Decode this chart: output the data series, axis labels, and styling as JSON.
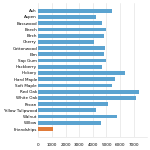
{
  "categories": [
    "Friendships",
    "Willow",
    "Walnut",
    "Yellow Tulipwood",
    "Pecan",
    "White Oak",
    "Red Oak",
    "Soft Maple",
    "Hard Maple",
    "Hickory",
    "Hackberry",
    "Sap Gum",
    "Elm",
    "Cottonwood",
    "Cherry",
    "Birch",
    "Beech",
    "Basswood",
    "Aspen",
    "Ash"
  ],
  "values": [
    1050,
    4600,
    5800,
    4200,
    5100,
    7200,
    7400,
    5400,
    5600,
    6400,
    4700,
    5000,
    4800,
    4900,
    4100,
    4800,
    5000,
    4700,
    4200,
    5400
  ],
  "bar_colors": [
    "#e07b39",
    "#5ba3d0",
    "#5ba3d0",
    "#5ba3d0",
    "#5ba3d0",
    "#5ba3d0",
    "#5ba3d0",
    "#5ba3d0",
    "#5ba3d0",
    "#5ba3d0",
    "#5ba3d0",
    "#5ba3d0",
    "#5ba3d0",
    "#5ba3d0",
    "#5ba3d0",
    "#5ba3d0",
    "#5ba3d0",
    "#5ba3d0",
    "#5ba3d0",
    "#5ba3d0"
  ],
  "xlim": [
    0,
    8000
  ],
  "xticks": [
    0,
    1000,
    2000,
    3000,
    4000,
    5000,
    6000,
    7000
  ],
  "background_color": "#ffffff",
  "bar_height": 0.6,
  "grid_color": "#dddddd",
  "tick_fontsize": 3.0,
  "label_fontsize": 3.0
}
